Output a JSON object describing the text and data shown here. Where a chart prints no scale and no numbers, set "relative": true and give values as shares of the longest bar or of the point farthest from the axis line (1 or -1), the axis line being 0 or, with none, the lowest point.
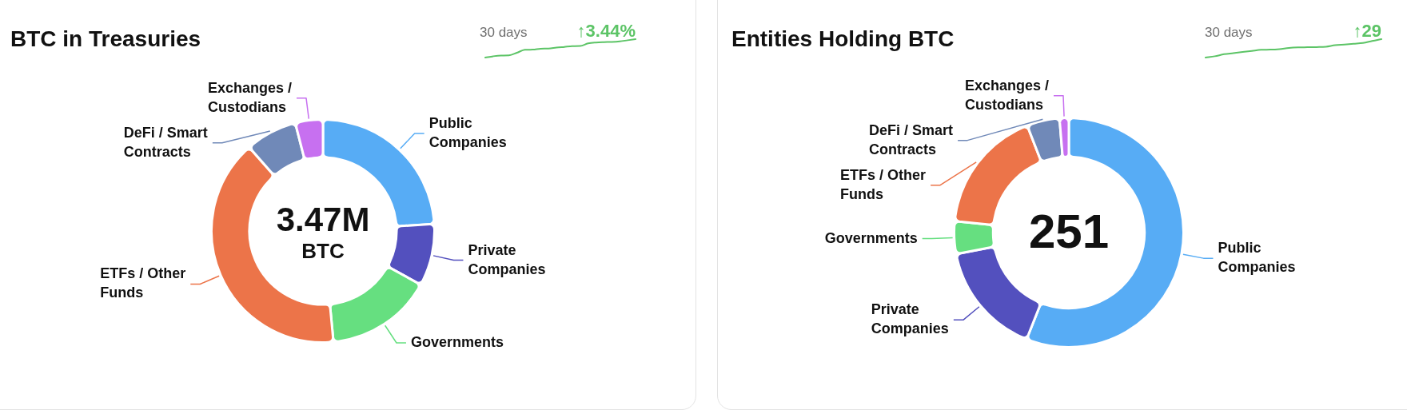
{
  "chart_data": [
    {
      "type": "donut",
      "title": "BTC in Treasuries",
      "categories": [
        "Public Companies",
        "Private Companies",
        "Governments",
        "ETFs / Other Funds",
        "DeFi / Smart Contracts",
        "Exchanges / Custodians"
      ],
      "values": [
        24,
        9,
        15.5,
        40,
        7.5,
        4
      ],
      "colors": [
        "#57acf5",
        "#5350be",
        "#66df80",
        "#ec7449",
        "#7089b8",
        "#c770f0"
      ],
      "annotations": [
        "3.47M",
        "BTC"
      ]
    },
    {
      "type": "line",
      "title": "30 days",
      "relative": true,
      "categories": [
        null,
        null,
        null,
        null,
        null,
        null,
        null,
        null,
        null,
        null,
        null,
        null,
        null,
        null,
        null,
        null,
        null,
        null,
        null,
        null
      ],
      "series": [
        {
          "color": "#5cc466",
          "values": [
            0,
            0.07,
            0.11,
            0.12,
            0.26,
            0.42,
            0.43,
            0.48,
            0.49,
            0.54,
            0.58,
            0.62,
            0.63,
            0.77,
            0.82,
            0.84,
            0.85,
            0.88,
            0.94,
            1
          ]
        }
      ],
      "annotations": [
        "↑3.44%"
      ]
    },
    {
      "type": "donut",
      "title": "Entities Holding BTC",
      "categories": [
        "Public Companies",
        "Private Companies",
        "Governments",
        "ETFs / Other Funds",
        "DeFi / Smart Contracts",
        "Exchanges / Custodians"
      ],
      "values": [
        56,
        16,
        4.6,
        17.5,
        4.6,
        1.3
      ],
      "colors": [
        "#57acf5",
        "#5350be",
        "#66df80",
        "#ec7449",
        "#7089b8",
        "#c770f0"
      ],
      "annotations": [
        "251"
      ]
    },
    {
      "type": "line",
      "title": "30 days",
      "relative": true,
      "categories": [
        null,
        null,
        null,
        null,
        null,
        null,
        null,
        null,
        null,
        null,
        null,
        null,
        null,
        null,
        null,
        null,
        null,
        null,
        null,
        null
      ],
      "series": [
        {
          "color": "#5cc466",
          "values": [
            0,
            0.07,
            0.18,
            0.24,
            0.3,
            0.36,
            0.42,
            0.43,
            0.46,
            0.52,
            0.55,
            0.56,
            0.57,
            0.59,
            0.67,
            0.71,
            0.75,
            0.79,
            0.9,
            1
          ]
        }
      ],
      "annotations": [
        "↑29"
      ]
    }
  ]
}
